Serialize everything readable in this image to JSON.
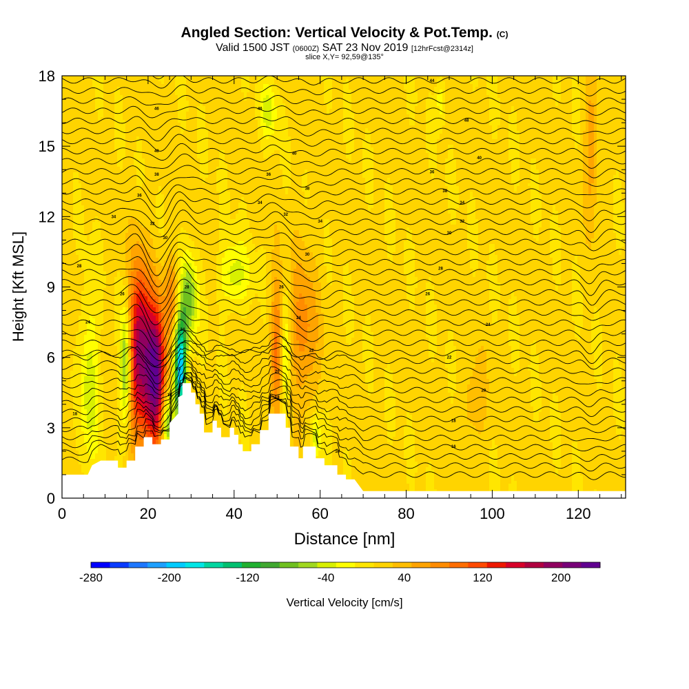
{
  "header": {
    "title": "Angled Section: Vertical Velocity & Pot.Temp.",
    "title_suffix": "(C)",
    "valid_prefix": "Valid 1500 JST",
    "valid_utc": "(0600Z)",
    "valid_date": "SAT 23 Nov 2019",
    "valid_fcst": "[12hrFcst@2314z]",
    "slice": "slice X,Y= 92,59@135°"
  },
  "chart_data": {
    "type": "heatmap",
    "title": "Angled Section: Vertical Velocity & Pot.Temp.",
    "xlabel": "Distance [nm]",
    "ylabel": "Height [Kft MSL]",
    "xlim": [
      0,
      131
    ],
    "ylim": [
      0,
      18
    ],
    "x_ticks": [
      "0",
      "20",
      "40",
      "60",
      "80",
      "100",
      "120"
    ],
    "y_ticks": [
      "0",
      "3",
      "6",
      "9",
      "12",
      "15",
      "18"
    ],
    "colorbar": {
      "label": "Vertical Velocity [cm/s]",
      "range": [
        -280,
        240
      ],
      "ticks": [
        "-280",
        "-200",
        "-120",
        "-40",
        "40",
        "120",
        "200"
      ],
      "colors": [
        "#0000ff",
        "#0a3cff",
        "#1e78ff",
        "#1ea0ff",
        "#00ccff",
        "#00e6e6",
        "#00d6a0",
        "#00c070",
        "#20b030",
        "#40a830",
        "#70c020",
        "#a0d820",
        "#d8f000",
        "#ffff00",
        "#ffe600",
        "#ffd400",
        "#ffbe00",
        "#ffa400",
        "#ff8c00",
        "#ff6e00",
        "#ff4a00",
        "#ee1800",
        "#d8002a",
        "#b00040",
        "#900060",
        "#780078",
        "#600090"
      ]
    },
    "contour_labels": [
      "14",
      "16",
      "18",
      "20",
      "22",
      "24",
      "26",
      "28",
      "30",
      "32",
      "34",
      "36",
      "38",
      "40",
      "42",
      "44",
      "46",
      "48"
    ],
    "terrain_kft": [
      [
        0,
        1.0
      ],
      [
        6,
        1.0
      ],
      [
        7,
        1.4
      ],
      [
        9,
        1.6
      ],
      [
        13,
        1.6
      ],
      [
        13,
        1.3
      ],
      [
        15,
        1.3
      ],
      [
        15,
        1.6
      ],
      [
        17,
        1.6
      ],
      [
        17,
        2.2
      ],
      [
        19,
        2.2
      ],
      [
        19,
        2.6
      ],
      [
        21,
        2.6
      ],
      [
        21,
        2.3
      ],
      [
        23,
        2.3
      ],
      [
        23,
        2.5
      ],
      [
        25,
        2.5
      ],
      [
        25,
        3.2
      ],
      [
        27,
        3.6
      ],
      [
        27,
        4.3
      ],
      [
        28,
        4.4
      ],
      [
        28,
        4.9
      ],
      [
        30,
        4.9
      ],
      [
        30,
        4.5
      ],
      [
        31,
        4.5
      ],
      [
        31,
        4.0
      ],
      [
        32,
        4.0
      ],
      [
        32,
        3.6
      ],
      [
        33,
        3.6
      ],
      [
        33,
        2.8
      ],
      [
        35,
        2.8
      ],
      [
        35,
        3.3
      ],
      [
        36,
        3.3
      ],
      [
        36,
        3.0
      ],
      [
        37,
        3.0
      ],
      [
        37,
        2.6
      ],
      [
        39,
        2.6
      ],
      [
        39,
        3.0
      ],
      [
        40,
        3.0
      ],
      [
        40,
        2.7
      ],
      [
        41,
        2.7
      ],
      [
        41,
        2.3
      ],
      [
        42,
        2.3
      ],
      [
        42,
        2.0
      ],
      [
        44,
        2.0
      ],
      [
        44,
        2.3
      ],
      [
        46,
        2.3
      ],
      [
        46,
        2.9
      ],
      [
        48,
        2.9
      ],
      [
        48,
        3.6
      ],
      [
        52,
        3.6
      ],
      [
        52,
        3.0
      ],
      [
        53,
        3.0
      ],
      [
        53,
        2.2
      ],
      [
        55,
        2.2
      ],
      [
        55,
        1.7
      ],
      [
        56,
        1.7
      ],
      [
        56,
        2.2
      ],
      [
        59,
        2.2
      ],
      [
        59,
        1.7
      ],
      [
        61,
        1.7
      ],
      [
        61,
        1.4
      ],
      [
        64,
        1.4
      ],
      [
        64,
        1.0
      ],
      [
        66,
        1.0
      ],
      [
        66,
        0.8
      ],
      [
        68,
        0.8
      ],
      [
        70,
        0.3
      ],
      [
        131,
        0.3
      ]
    ],
    "velocity_features": [
      {
        "x": 18.0,
        "y": 6.2,
        "half_width_nm": 2.6,
        "half_height_kft": 3.6,
        "value": 180
      },
      {
        "x": 21.8,
        "y": 5.2,
        "half_width_nm": 2.2,
        "half_height_kft": 3.0,
        "value": 210
      },
      {
        "x": 25.5,
        "y": 8.6,
        "half_width_nm": 1.8,
        "half_height_kft": 1.7,
        "value": 60
      },
      {
        "x": 27.5,
        "y": 5.5,
        "half_width_nm": 1.4,
        "half_height_kft": 2.2,
        "value": -220
      },
      {
        "x": 29.5,
        "y": 8.5,
        "half_width_nm": 2.0,
        "half_height_kft": 1.8,
        "value": -90
      },
      {
        "x": 14.8,
        "y": 5.6,
        "half_width_nm": 1.3,
        "half_height_kft": 2.6,
        "value": -110
      },
      {
        "x": 24.5,
        "y": 3.2,
        "half_width_nm": 1.3,
        "half_height_kft": 1.2,
        "value": -100
      },
      {
        "x": 6.5,
        "y": 5.0,
        "half_width_nm": 2.0,
        "half_height_kft": 3.5,
        "value": -60
      },
      {
        "x": 40.0,
        "y": 9.5,
        "half_width_nm": 3.5,
        "half_height_kft": 1.4,
        "value": -55
      },
      {
        "x": 50.0,
        "y": 6.5,
        "half_width_nm": 1.5,
        "half_height_kft": 3.0,
        "value": 80
      },
      {
        "x": 51.8,
        "y": 6.0,
        "half_width_nm": 1.2,
        "half_height_kft": 3.0,
        "value": -60
      },
      {
        "x": 56.0,
        "y": 7.0,
        "half_width_nm": 3.5,
        "half_height_kft": 3.5,
        "value": 60
      },
      {
        "x": 59.0,
        "y": 2.6,
        "half_width_nm": 1.2,
        "half_height_kft": 1.0,
        "value": -60
      },
      {
        "x": 48.0,
        "y": 16.5,
        "half_width_nm": 2.0,
        "half_height_kft": 1.2,
        "value": -50
      },
      {
        "x": 123.0,
        "y": 15.0,
        "half_width_nm": 1.6,
        "half_height_kft": 3.0,
        "value": 50
      },
      {
        "x": 88.0,
        "y": 17.0,
        "half_width_nm": 1.0,
        "half_height_kft": 1.0,
        "value": -40
      },
      {
        "x": 96.0,
        "y": 4.0,
        "half_width_nm": 3.0,
        "half_height_kft": 2.0,
        "value": 30
      }
    ],
    "contour_label_points": [
      {
        "x": 22,
        "y": 16.6,
        "text": "46"
      },
      {
        "x": 46,
        "y": 16.6,
        "text": "46"
      },
      {
        "x": 86,
        "y": 17.8,
        "text": "44"
      },
      {
        "x": 94,
        "y": 16.1,
        "text": "48"
      },
      {
        "x": 22,
        "y": 14.8,
        "text": "40"
      },
      {
        "x": 54,
        "y": 14.7,
        "text": "40"
      },
      {
        "x": 97,
        "y": 14.5,
        "text": "40"
      },
      {
        "x": 22,
        "y": 13.8,
        "text": "38"
      },
      {
        "x": 48,
        "y": 13.8,
        "text": "36"
      },
      {
        "x": 86,
        "y": 13.9,
        "text": "36"
      },
      {
        "x": 18,
        "y": 12.9,
        "text": "36"
      },
      {
        "x": 57,
        "y": 13.2,
        "text": "38"
      },
      {
        "x": 89,
        "y": 13.1,
        "text": "38"
      },
      {
        "x": 93,
        "y": 12.6,
        "text": "34"
      },
      {
        "x": 12,
        "y": 12.0,
        "text": "34"
      },
      {
        "x": 46,
        "y": 12.6,
        "text": "34"
      },
      {
        "x": 21,
        "y": 11.7,
        "text": "32"
      },
      {
        "x": 52,
        "y": 12.1,
        "text": "32"
      },
      {
        "x": 60,
        "y": 11.8,
        "text": "34"
      },
      {
        "x": 93,
        "y": 11.8,
        "text": "32"
      },
      {
        "x": 24,
        "y": 11.1,
        "text": "30"
      },
      {
        "x": 90,
        "y": 11.3,
        "text": "30"
      },
      {
        "x": 4,
        "y": 9.9,
        "text": "28"
      },
      {
        "x": 57,
        "y": 10.4,
        "text": "30"
      },
      {
        "x": 88,
        "y": 9.8,
        "text": "28"
      },
      {
        "x": 14,
        "y": 8.7,
        "text": "26"
      },
      {
        "x": 29,
        "y": 9.0,
        "text": "28"
      },
      {
        "x": 51,
        "y": 9.0,
        "text": "26"
      },
      {
        "x": 85,
        "y": 8.7,
        "text": "26"
      },
      {
        "x": 6,
        "y": 7.5,
        "text": "24"
      },
      {
        "x": 55,
        "y": 7.7,
        "text": "24"
      },
      {
        "x": 28,
        "y": 7.2,
        "text": "24"
      },
      {
        "x": 99,
        "y": 7.4,
        "text": "24"
      },
      {
        "x": 58,
        "y": 6.3,
        "text": "22"
      },
      {
        "x": 90,
        "y": 6.0,
        "text": "22"
      },
      {
        "x": 27,
        "y": 5.5,
        "text": "20"
      },
      {
        "x": 50,
        "y": 5.4,
        "text": "20"
      },
      {
        "x": 98,
        "y": 4.6,
        "text": "20"
      },
      {
        "x": 25,
        "y": 4.4,
        "text": "18"
      },
      {
        "x": 50,
        "y": 4.3,
        "text": "18"
      },
      {
        "x": 91,
        "y": 3.3,
        "text": "18"
      },
      {
        "x": 3,
        "y": 3.6,
        "text": "18"
      },
      {
        "x": 91,
        "y": 2.2,
        "text": "16"
      },
      {
        "x": 64,
        "y": 2.0,
        "text": "14"
      }
    ]
  }
}
